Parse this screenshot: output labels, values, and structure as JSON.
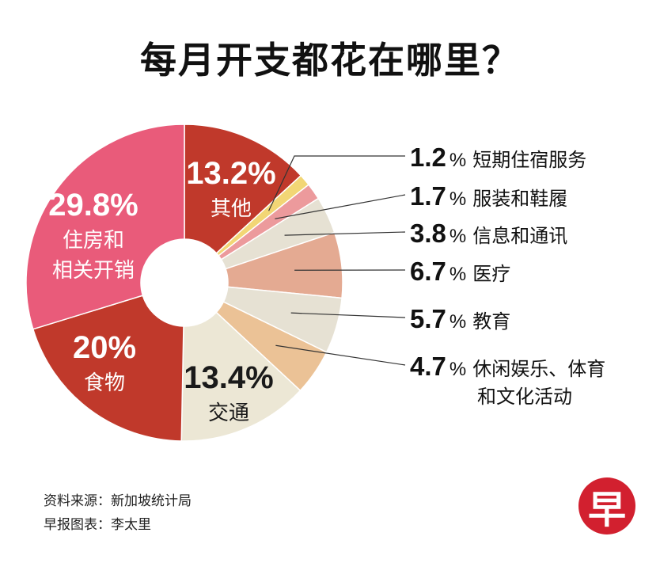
{
  "title": "每月开支都花在哪里？",
  "chart_data": {
    "type": "pie",
    "donut": true,
    "slices": [
      {
        "value": 13.2,
        "label": "其他",
        "pct_text": "13.2%",
        "color": "#c0392b",
        "label_inside": true
      },
      {
        "value": 1.2,
        "label": "短期住宿服务",
        "pct_text": "1.2",
        "color": "#f2d675",
        "label_inside": false
      },
      {
        "value": 1.7,
        "label": "服装和鞋履",
        "pct_text": "1.7",
        "color": "#ec9a9c",
        "label_inside": false
      },
      {
        "value": 3.8,
        "label": "信息和通讯",
        "pct_text": "3.8",
        "color": "#e6e1d3",
        "label_inside": false
      },
      {
        "value": 6.7,
        "label": "医疗",
        "pct_text": "6.7",
        "color": "#e4aa92",
        "label_inside": false
      },
      {
        "value": 5.7,
        "label": "教育",
        "pct_text": "5.7",
        "color": "#e6e1d3",
        "label_inside": false
      },
      {
        "value": 4.7,
        "label": "休闲娱乐、体育",
        "label2": "和文化活动",
        "pct_text": "4.7",
        "color": "#ebc296",
        "label_inside": false
      },
      {
        "value": 13.4,
        "label": "交通",
        "pct_text": "13.4%",
        "color": "#ece7d5",
        "label_inside": true
      },
      {
        "value": 20,
        "label": "食物",
        "pct_text": "20%",
        "color": "#c0392b",
        "label_inside": true
      },
      {
        "value": 29.8,
        "label": "住房和",
        "label2": "相关开销",
        "pct_text": "29.8%",
        "color": "#e95b7a",
        "label_inside": true
      }
    ]
  },
  "legend_percent_sign": "%",
  "source": {
    "line1": "资料来源：新加坡统计局",
    "line2": "早报图表：李太里"
  },
  "logo": "早"
}
